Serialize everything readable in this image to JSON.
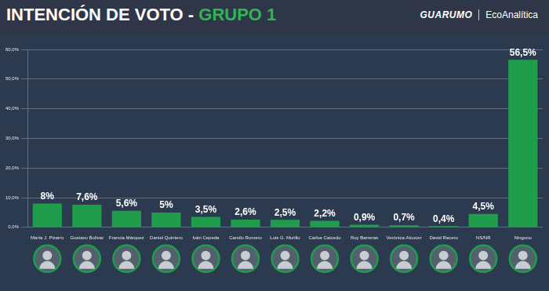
{
  "chart_data": {
    "type": "bar",
    "title": "INTENCIÓN DE VOTO -",
    "subtitle": "GRUPO 1",
    "annotations": [
      "GUARUMO",
      "EcoAnalítica"
    ],
    "categories": [
      "María J. Pizarro",
      "Gustavo Bolívar",
      "Francia Márquez",
      "Daniel Quintero",
      "Iván Cepeda",
      "Camilo Romero",
      "Luis G. Murillo",
      "Carlos Caicedo",
      "Roy Barreras",
      "Verónica Alcocer",
      "David Racero",
      "NS/NR",
      "Ninguno"
    ],
    "values": [
      8,
      7.6,
      5.6,
      5,
      3.5,
      2.6,
      2.5,
      2.2,
      0.9,
      0.7,
      0.4,
      4.5,
      56.5
    ],
    "value_labels": [
      "8%",
      "7,6%",
      "5,6%",
      "5%",
      "3,5%",
      "2,6%",
      "2,5%",
      "2,2%",
      "0,9%",
      "0,7%",
      "0,4%",
      "4,5%",
      "56,5%"
    ],
    "color": "#1f9d4c",
    "ylim": [
      0,
      60
    ],
    "yticks": [
      {
        "value": 0,
        "label": "0,0%"
      },
      {
        "value": 10,
        "label": "10,0%"
      },
      {
        "value": 20,
        "label": "20,0%"
      },
      {
        "value": 30,
        "label": "30,0%"
      },
      {
        "value": 40,
        "label": "40,0%"
      },
      {
        "value": 50,
        "label": "50,0%"
      },
      {
        "value": 60,
        "label": "60,0%"
      }
    ],
    "grid": true,
    "data_labels": true
  }
}
